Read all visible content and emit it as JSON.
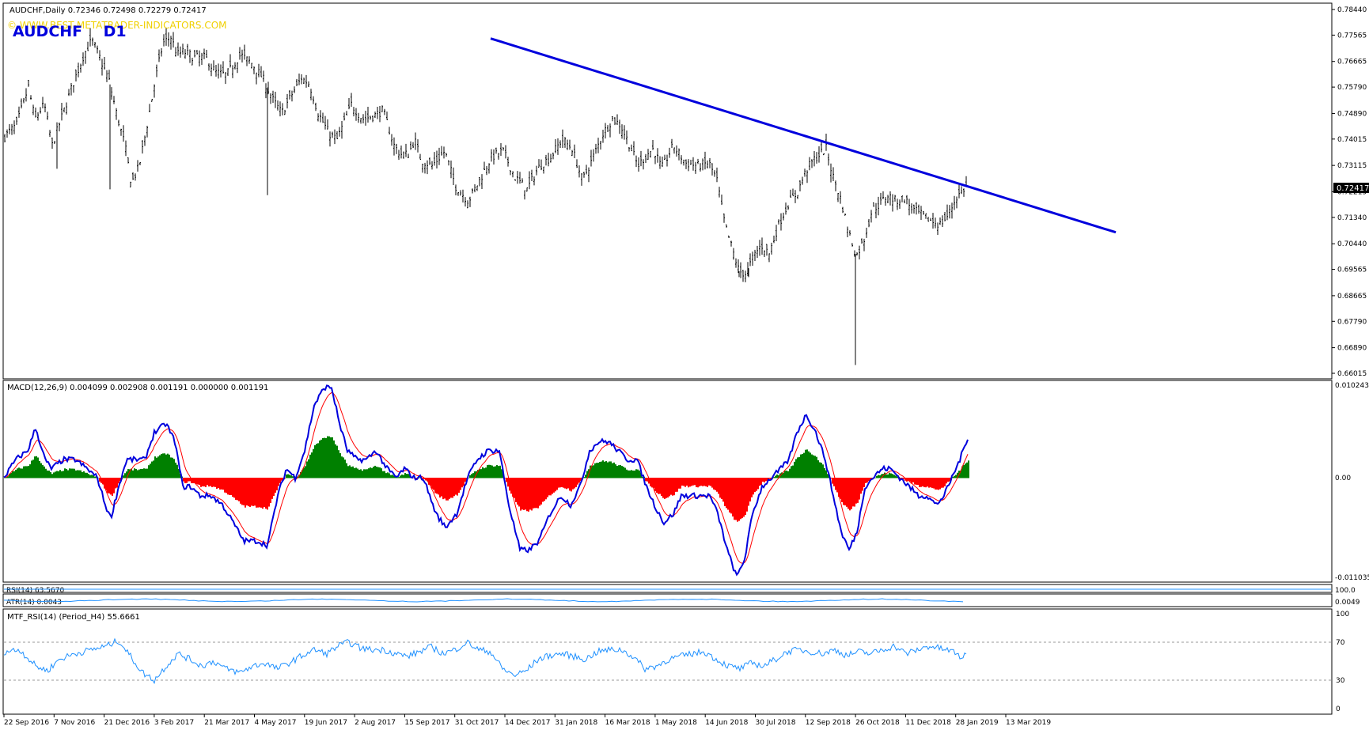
{
  "header": {
    "symbol_line": "AUDCHF,Daily  0.72346 0.72498 0.72279 0.72417",
    "big_label": "AUDCHF    D1",
    "watermark": "© WWW.BEST-METATRADER-INDICATORS.COM"
  },
  "colors": {
    "candles": "#000000",
    "trendline": "#0000dd",
    "macd_line": "#0000dd",
    "signal_line": "#ff0000",
    "hist_pos": "#008000",
    "hist_neg": "#ff0000",
    "rsi_line": "#1e90ff",
    "watermark": "#f0d000",
    "price_tag_bg": "#000000"
  },
  "chart_data": [
    {
      "type": "candlestick",
      "name": "AUDCHF,Daily",
      "ylim": [
        0.66015,
        0.7844
      ],
      "y_ticks": [
        "0.78440",
        "0.77565",
        "0.76665",
        "0.75790",
        "0.74890",
        "0.74015",
        "0.73115",
        "0.72215",
        "0.71340",
        "0.70440",
        "0.69565",
        "0.68665",
        "0.67790",
        "0.66890",
        "0.66015"
      ],
      "current_price": "0.72417",
      "x_labels": [
        "22 Sep 2016",
        "7 Nov 2016",
        "21 Dec 2016",
        "3 Feb 2017",
        "21 Mar 2017",
        "4 May 2017",
        "19 Jun 2017",
        "2 Aug 2017",
        "15 Sep 2017",
        "31 Oct 2017",
        "14 Dec 2017",
        "31 Jan 2018",
        "16 Mar 2018",
        "1 May 2018",
        "14 Jun 2018",
        "30 Jul 2018",
        "12 Sep 2018",
        "26 Oct 2018",
        "11 Dec 2018",
        "28 Jan 2019",
        "13 Mar 2019"
      ],
      "price_path": [
        [
          0,
          0.741
        ],
        [
          15,
          0.745
        ],
        [
          30,
          0.758
        ],
        [
          38,
          0.747
        ],
        [
          50,
          0.752
        ],
        [
          60,
          0.738
        ],
        [
          75,
          0.75
        ],
        [
          85,
          0.758
        ],
        [
          100,
          0.769
        ],
        [
          110,
          0.774
        ],
        [
          120,
          0.768
        ],
        [
          132,
          0.76
        ],
        [
          142,
          0.748
        ],
        [
          152,
          0.738
        ],
        [
          160,
          0.725
        ],
        [
          170,
          0.731
        ],
        [
          180,
          0.745
        ],
        [
          190,
          0.76
        ],
        [
          200,
          0.773
        ],
        [
          210,
          0.775
        ],
        [
          218,
          0.769
        ],
        [
          226,
          0.77
        ],
        [
          240,
          0.768
        ],
        [
          254,
          0.768
        ],
        [
          266,
          0.763
        ],
        [
          280,
          0.762
        ],
        [
          298,
          0.769
        ],
        [
          312,
          0.766
        ],
        [
          326,
          0.761
        ],
        [
          340,
          0.753
        ],
        [
          350,
          0.749
        ],
        [
          362,
          0.755
        ],
        [
          375,
          0.761
        ],
        [
          385,
          0.759
        ],
        [
          396,
          0.749
        ],
        [
          410,
          0.742
        ],
        [
          420,
          0.74
        ],
        [
          438,
          0.752
        ],
        [
          452,
          0.747
        ],
        [
          466,
          0.748
        ],
        [
          478,
          0.75
        ],
        [
          492,
          0.738
        ],
        [
          500,
          0.735
        ],
        [
          510,
          0.735
        ],
        [
          518,
          0.74
        ],
        [
          526,
          0.733
        ],
        [
          540,
          0.731
        ],
        [
          556,
          0.736
        ],
        [
          570,
          0.724
        ],
        [
          586,
          0.719
        ],
        [
          600,
          0.726
        ],
        [
          615,
          0.734
        ],
        [
          630,
          0.736
        ],
        [
          645,
          0.727
        ],
        [
          660,
          0.723
        ],
        [
          676,
          0.731
        ],
        [
          690,
          0.734
        ],
        [
          704,
          0.74
        ],
        [
          717,
          0.737
        ],
        [
          730,
          0.726
        ],
        [
          742,
          0.733
        ],
        [
          756,
          0.742
        ],
        [
          768,
          0.747
        ],
        [
          778,
          0.745
        ],
        [
          790,
          0.738
        ],
        [
          800,
          0.731
        ],
        [
          812,
          0.735
        ],
        [
          820,
          0.737
        ],
        [
          830,
          0.73
        ],
        [
          845,
          0.738
        ],
        [
          860,
          0.732
        ],
        [
          876,
          0.731
        ],
        [
          890,
          0.732
        ],
        [
          900,
          0.726
        ],
        [
          910,
          0.711
        ],
        [
          920,
          0.702
        ],
        [
          928,
          0.695
        ],
        [
          937,
          0.694
        ],
        [
          946,
          0.7
        ],
        [
          956,
          0.704
        ],
        [
          966,
          0.701
        ],
        [
          978,
          0.711
        ],
        [
          990,
          0.718
        ],
        [
          1002,
          0.722
        ],
        [
          1012,
          0.729
        ],
        [
          1022,
          0.733
        ],
        [
          1030,
          0.735
        ],
        [
          1038,
          0.737
        ],
        [
          1046,
          0.728
        ],
        [
          1056,
          0.72
        ],
        [
          1066,
          0.709
        ],
        [
          1076,
          0.7
        ],
        [
          1086,
          0.706
        ],
        [
          1096,
          0.716
        ],
        [
          1106,
          0.718
        ],
        [
          1116,
          0.721
        ],
        [
          1126,
          0.719
        ],
        [
          1136,
          0.72
        ],
        [
          1148,
          0.716
        ],
        [
          1160,
          0.714
        ],
        [
          1172,
          0.712
        ],
        [
          1182,
          0.711
        ],
        [
          1192,
          0.714
        ],
        [
          1202,
          0.72
        ],
        [
          1212,
          0.723
        ],
        [
          1216,
          0.7242
        ]
      ],
      "spikes": [
        [
          66,
          0.73
        ],
        [
          133,
          0.723
        ],
        [
          332,
          0.721
        ],
        [
          928,
          0.693
        ],
        [
          940,
          0.693
        ],
        [
          1075,
          0.663
        ]
      ],
      "trendline": [
        [
          615,
          0.7745
        ],
        [
          1405,
          0.7083
        ]
      ]
    },
    {
      "type": "line",
      "name": "MACD(12,26,9) 0.004099 0.002908 0.001191 0.000000 0.001191",
      "ylim": [
        -0.011035,
        0.010243
      ],
      "y_ticks": [
        "0.010243",
        "0.00",
        "-0.011035"
      ],
      "macd_path": [
        [
          0,
          0.0
        ],
        [
          15,
          0.002
        ],
        [
          30,
          0.003
        ],
        [
          40,
          0.0055
        ],
        [
          52,
          0.002
        ],
        [
          60,
          0.001
        ],
        [
          75,
          0.002
        ],
        [
          90,
          0.002
        ],
        [
          105,
          0.001
        ],
        [
          118,
          0.0
        ],
        [
          128,
          -0.003
        ],
        [
          135,
          -0.0045
        ],
        [
          145,
          -0.001
        ],
        [
          155,
          0.002
        ],
        [
          165,
          0.002
        ],
        [
          178,
          0.002
        ],
        [
          190,
          0.005
        ],
        [
          205,
          0.006
        ],
        [
          216,
          0.004
        ],
        [
          226,
          -0.001
        ],
        [
          236,
          -0.001
        ],
        [
          248,
          -0.002
        ],
        [
          262,
          -0.002
        ],
        [
          276,
          -0.003
        ],
        [
          290,
          -0.005
        ],
        [
          303,
          -0.007
        ],
        [
          320,
          -0.007
        ],
        [
          333,
          -0.0075
        ],
        [
          346,
          -0.002
        ],
        [
          357,
          0.001
        ],
        [
          368,
          0.0
        ],
        [
          380,
          0.003
        ],
        [
          392,
          0.008
        ],
        [
          405,
          0.01
        ],
        [
          414,
          0.01
        ],
        [
          424,
          0.006
        ],
        [
          434,
          0.003
        ],
        [
          446,
          0.002
        ],
        [
          458,
          0.002
        ],
        [
          470,
          0.003
        ],
        [
          484,
          0.001
        ],
        [
          496,
          0.0
        ],
        [
          506,
          0.001
        ],
        [
          518,
          0.0
        ],
        [
          530,
          0.0
        ],
        [
          546,
          -0.004
        ],
        [
          558,
          -0.0055
        ],
        [
          572,
          -0.004
        ],
        [
          586,
          0.0
        ],
        [
          598,
          0.002
        ],
        [
          612,
          0.003
        ],
        [
          626,
          0.003
        ],
        [
          638,
          -0.003
        ],
        [
          652,
          -0.008
        ],
        [
          664,
          -0.008
        ],
        [
          676,
          -0.007
        ],
        [
          690,
          -0.004
        ],
        [
          704,
          -0.002
        ],
        [
          716,
          -0.003
        ],
        [
          728,
          -0.001
        ],
        [
          740,
          0.003
        ],
        [
          752,
          0.004
        ],
        [
          764,
          0.004
        ],
        [
          776,
          0.003
        ],
        [
          788,
          0.002
        ],
        [
          800,
          0.002
        ],
        [
          812,
          -0.001
        ],
        [
          822,
          -0.003
        ],
        [
          834,
          -0.005
        ],
        [
          846,
          -0.004
        ],
        [
          856,
          -0.002
        ],
        [
          868,
          -0.002
        ],
        [
          880,
          -0.002
        ],
        [
          892,
          -0.002
        ],
        [
          902,
          -0.004
        ],
        [
          914,
          -0.008
        ],
        [
          926,
          -0.011
        ],
        [
          936,
          -0.009
        ],
        [
          946,
          -0.004
        ],
        [
          958,
          -0.001
        ],
        [
          970,
          0.0
        ],
        [
          982,
          0.001
        ],
        [
          992,
          0.002
        ],
        [
          1002,
          0.005
        ],
        [
          1014,
          0.007
        ],
        [
          1026,
          0.005
        ],
        [
          1038,
          0.002
        ],
        [
          1048,
          -0.002
        ],
        [
          1058,
          -0.006
        ],
        [
          1068,
          -0.008
        ],
        [
          1078,
          -0.006
        ],
        [
          1088,
          -0.001
        ],
        [
          1098,
          0.0
        ],
        [
          1110,
          0.001
        ],
        [
          1120,
          0.001
        ],
        [
          1132,
          0.0
        ],
        [
          1144,
          -0.001
        ],
        [
          1156,
          -0.002
        ],
        [
          1166,
          -0.002
        ],
        [
          1178,
          -0.003
        ],
        [
          1188,
          -0.002
        ],
        [
          1198,
          0.0
        ],
        [
          1208,
          0.002
        ],
        [
          1218,
          0.0045
        ]
      ],
      "signal_smoothing": 9,
      "hist_gain": 0.45
    },
    {
      "type": "line",
      "name": "RSI(14) 63.5670",
      "collapsed": true
    },
    {
      "type": "line",
      "name": "ATR(14) 0.0043",
      "collapsed": true
    },
    {
      "type": "line",
      "name": "MTF_RSI(14) (Period_H4) 55.6661",
      "ylim": [
        0,
        100
      ],
      "y_ticks": [
        "100",
        "70",
        "30",
        "0"
      ],
      "levels": [
        70,
        30
      ],
      "rsi_path": [
        [
          0,
          60
        ],
        [
          20,
          62
        ],
        [
          40,
          45
        ],
        [
          55,
          40
        ],
        [
          70,
          52
        ],
        [
          90,
          58
        ],
        [
          110,
          62
        ],
        [
          130,
          66
        ],
        [
          145,
          72
        ],
        [
          160,
          55
        ],
        [
          175,
          38
        ],
        [
          190,
          30
        ],
        [
          205,
          45
        ],
        [
          220,
          58
        ],
        [
          235,
          52
        ],
        [
          250,
          45
        ],
        [
          265,
          50
        ],
        [
          280,
          42
        ],
        [
          298,
          38
        ],
        [
          315,
          45
        ],
        [
          330,
          48
        ],
        [
          345,
          42
        ],
        [
          360,
          48
        ],
        [
          375,
          55
        ],
        [
          392,
          62
        ],
        [
          408,
          58
        ],
        [
          422,
          66
        ],
        [
          436,
          70
        ],
        [
          450,
          64
        ],
        [
          465,
          62
        ],
        [
          480,
          62
        ],
        [
          496,
          58
        ],
        [
          510,
          55
        ],
        [
          525,
          60
        ],
        [
          540,
          65
        ],
        [
          555,
          58
        ],
        [
          570,
          62
        ],
        [
          585,
          70
        ],
        [
          600,
          62
        ],
        [
          615,
          60
        ],
        [
          630,
          42
        ],
        [
          645,
          35
        ],
        [
          660,
          40
        ],
        [
          675,
          52
        ],
        [
          690,
          56
        ],
        [
          705,
          58
        ],
        [
          720,
          55
        ],
        [
          735,
          52
        ],
        [
          750,
          60
        ],
        [
          765,
          62
        ],
        [
          780,
          62
        ],
        [
          795,
          55
        ],
        [
          810,
          42
        ],
        [
          825,
          45
        ],
        [
          840,
          52
        ],
        [
          855,
          55
        ],
        [
          870,
          58
        ],
        [
          885,
          60
        ],
        [
          900,
          52
        ],
        [
          915,
          45
        ],
        [
          930,
          42
        ],
        [
          945,
          48
        ],
        [
          960,
          45
        ],
        [
          975,
          52
        ],
        [
          990,
          60
        ],
        [
          1005,
          62
        ],
        [
          1020,
          60
        ],
        [
          1035,
          58
        ],
        [
          1050,
          62
        ],
        [
          1065,
          56
        ],
        [
          1080,
          60
        ],
        [
          1095,
          58
        ],
        [
          1110,
          62
        ],
        [
          1125,
          66
        ],
        [
          1140,
          58
        ],
        [
          1155,
          62
        ],
        [
          1170,
          66
        ],
        [
          1185,
          63
        ],
        [
          1200,
          60
        ],
        [
          1210,
          54
        ],
        [
          1216,
          55.7
        ]
      ]
    }
  ]
}
